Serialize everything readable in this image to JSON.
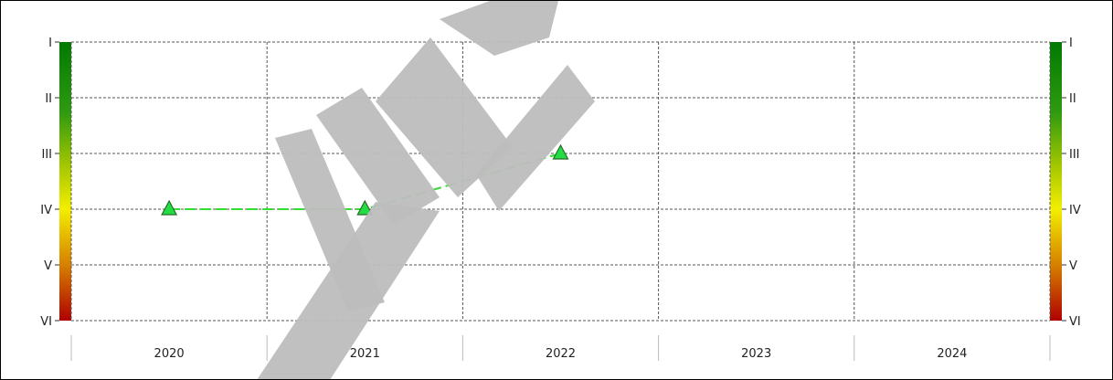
{
  "chart_data": {
    "type": "line",
    "title": "",
    "xlabel": "",
    "ylabel": "",
    "categories": [
      "2020",
      "2021",
      "2022",
      "2023",
      "2024"
    ],
    "y_levels": [
      "I",
      "II",
      "III",
      "IV",
      "V",
      "VI"
    ],
    "y_scale": "ordinal, I at top, VI at bottom",
    "grid": true,
    "series": [
      {
        "marker": "triangle",
        "line_style": "dashed",
        "color": "#33dd33",
        "points": [
          {
            "x": "2020",
            "y": "IV"
          },
          {
            "x": "2021",
            "y": "IV"
          },
          {
            "x": "2022",
            "y": "III"
          }
        ]
      }
    ],
    "color_scale": [
      "#008000",
      "#44aa11",
      "#aacc00",
      "#eeee00",
      "#cc8800",
      "#aa0000"
    ]
  }
}
